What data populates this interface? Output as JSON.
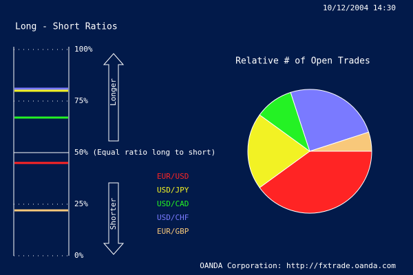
{
  "timestamp": "10/12/2004 14:30",
  "footer": "OANDA Corporation: http://fxtrade.oanda.com",
  "chart_data": [
    {
      "type": "ratio",
      "title": "Long - Short Ratios",
      "up_label": "Longer",
      "down_label": "Shorter",
      "categories": [
        "EUR/USD",
        "USD/JPY",
        "USD/CAD",
        "USD/CHF",
        "EUR/GBP"
      ],
      "values": [
        45,
        80,
        67,
        81,
        22
      ],
      "colors": [
        "#ff2424",
        "#f2f224",
        "#24f224",
        "#7a7aff",
        "#f8c87a"
      ],
      "ylim": [
        0,
        100
      ],
      "yticks": [
        {
          "value": 0,
          "label": "0%"
        },
        {
          "value": 25,
          "label": "25%"
        },
        {
          "value": 50,
          "label": "50% (Equal ratio long to short)"
        },
        {
          "value": 75,
          "label": "75%"
        },
        {
          "value": 100,
          "label": "100%"
        }
      ]
    },
    {
      "type": "pie",
      "title": "Relative # of Open Trades",
      "categories": [
        "EUR/USD",
        "USD/JPY",
        "USD/CAD",
        "USD/CHF",
        "EUR/GBP"
      ],
      "values": [
        40,
        20,
        10,
        25,
        5
      ],
      "colors": [
        "#ff2424",
        "#f2f224",
        "#24f224",
        "#7a7aff",
        "#f8c87a"
      ]
    }
  ]
}
